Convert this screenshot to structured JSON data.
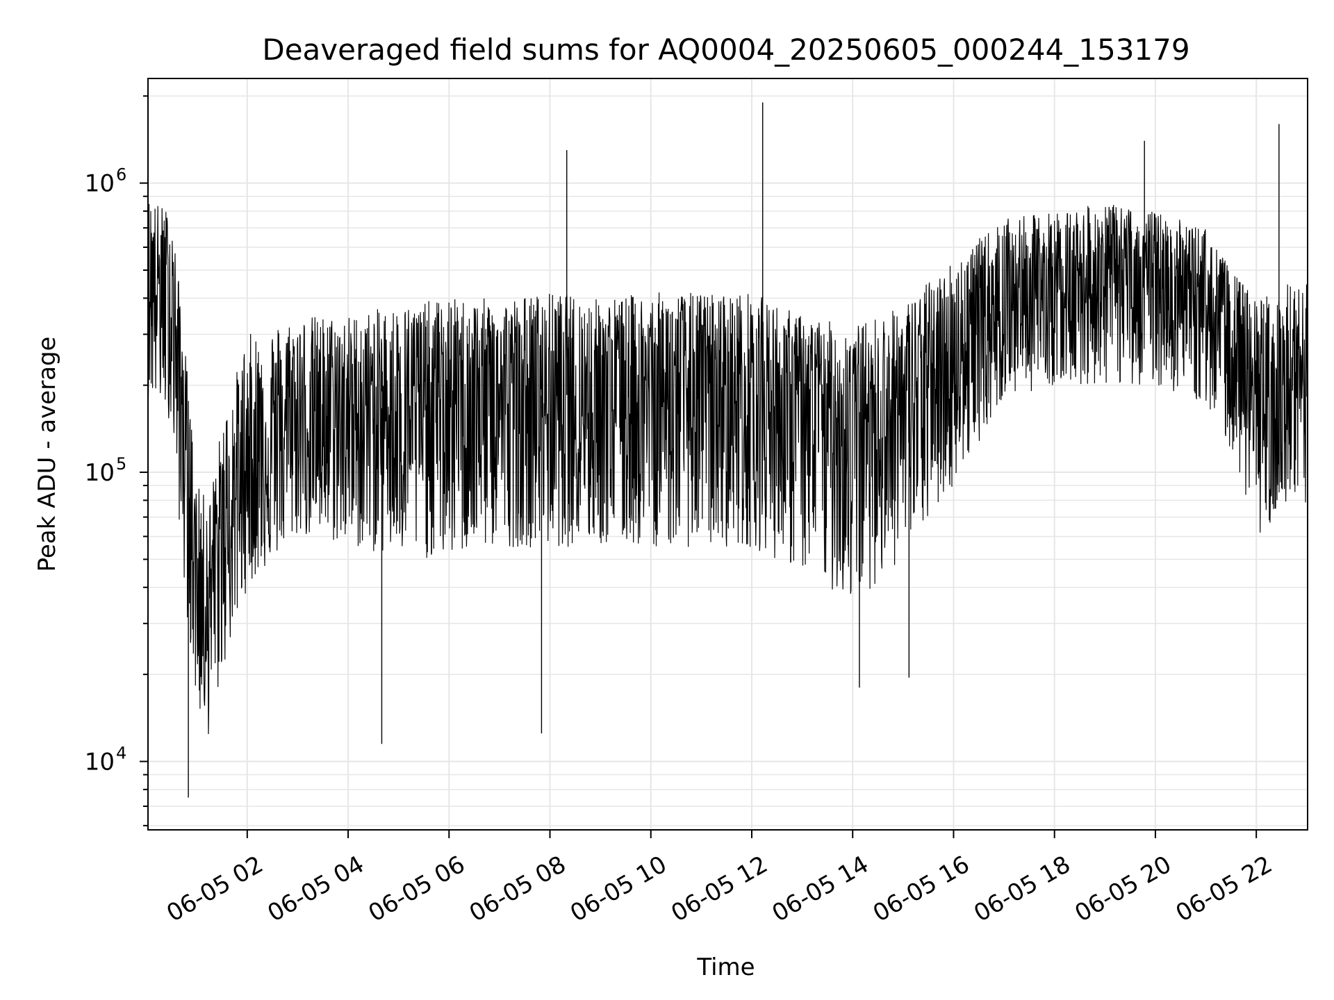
{
  "chart_data": {
    "type": "line",
    "title": "Deaveraged field sums for AQ0004_20250605_000244_153179",
    "xlabel": "Time",
    "ylabel": "Peak ADU - average",
    "yscale": "log",
    "ylim": [
      5800,
      2300000
    ],
    "xlim": [
      "2025-06-05 00:02",
      "2025-06-05 23:01"
    ],
    "grid": true,
    "x_ticks": [
      "2025-06-05 02:00",
      "2025-06-05 04:00",
      "2025-06-05 06:00",
      "2025-06-05 08:00",
      "2025-06-05 10:00",
      "2025-06-05 12:00",
      "2025-06-05 14:00",
      "2025-06-05 16:00",
      "2025-06-05 18:00",
      "2025-06-05 20:00",
      "2025-06-05 22:00"
    ],
    "x_tick_labels": [
      "06-05 02",
      "06-05 04",
      "06-05 06",
      "06-05 08",
      "06-05 10",
      "06-05 12",
      "06-05 14",
      "06-05 16",
      "06-05 18",
      "06-05 20",
      "06-05 22"
    ],
    "y_ticks": [
      10000,
      100000,
      1000000
    ],
    "y_tick_labels": [
      {
        "base": "10",
        "exp": "4"
      },
      {
        "base": "10",
        "exp": "5"
      },
      {
        "base": "10",
        "exp": "6"
      }
    ],
    "series": [
      {
        "color": "#000000",
        "description_points": {
          "x": [
            "2025-06-05 00:02",
            "2025-06-05 00:30",
            "2025-06-05 00:45",
            "2025-06-05 01:00",
            "2025-06-05 01:15",
            "2025-06-05 01:30",
            "2025-06-05 02:00",
            "2025-06-05 03:00",
            "2025-06-05 04:00",
            "2025-06-05 05:00",
            "2025-06-05 06:00",
            "2025-06-05 07:00",
            "2025-06-05 08:00",
            "2025-06-05 09:00",
            "2025-06-05 10:00",
            "2025-06-05 11:00",
            "2025-06-05 12:00",
            "2025-06-05 13:00",
            "2025-06-05 14:00",
            "2025-06-05 15:00",
            "2025-06-05 16:00",
            "2025-06-05 17:00",
            "2025-06-05 18:00",
            "2025-06-05 19:00",
            "2025-06-05 20:00",
            "2025-06-05 21:00",
            "2025-06-05 21:30",
            "2025-06-05 22:00",
            "2025-06-05 22:30",
            "2025-06-05 23:00"
          ],
          "y": [
            500000,
            400000,
            150000,
            45000,
            40000,
            60000,
            110000,
            150000,
            160000,
            170000,
            180000,
            180000,
            185000,
            185000,
            190000,
            190000,
            185000,
            170000,
            160000,
            170000,
            250000,
            400000,
            450000,
            480000,
            470000,
            400000,
            280000,
            160000,
            170000,
            170000
          ]
        },
        "envelope_high": [
          900000,
          800000,
          300000,
          90000,
          80000,
          150000,
          300000,
          350000,
          350000,
          380000,
          400000,
          400000,
          420000,
          400000,
          420000,
          420000,
          420000,
          350000,
          320000,
          380000,
          550000,
          750000,
          800000,
          850000,
          800000,
          700000,
          500000,
          400000,
          450000,
          450000
        ],
        "envelope_low": [
          180000,
          150000,
          40000,
          15000,
          12000,
          20000,
          40000,
          60000,
          55000,
          50000,
          50000,
          55000,
          55000,
          55000,
          55000,
          55000,
          55000,
          45000,
          35000,
          50000,
          90000,
          180000,
          200000,
          200000,
          200000,
          170000,
          120000,
          60000,
          70000,
          70000
        ],
        "spikes": [
          {
            "x": "2025-06-05 08:20",
            "y": 1300000
          },
          {
            "x": "2025-06-05 12:13",
            "y": 1900000
          },
          {
            "x": "2025-06-05 19:47",
            "y": 1400000
          },
          {
            "x": "2025-06-05 22:27",
            "y": 1600000
          },
          {
            "x": "2025-06-05 00:50",
            "y": 7500
          },
          {
            "x": "2025-06-05 04:40",
            "y": 11500
          },
          {
            "x": "2025-06-05 07:50",
            "y": 12500
          },
          {
            "x": "2025-06-05 14:08",
            "y": 18000
          },
          {
            "x": "2025-06-05 15:07",
            "y": 19500
          }
        ]
      }
    ]
  }
}
